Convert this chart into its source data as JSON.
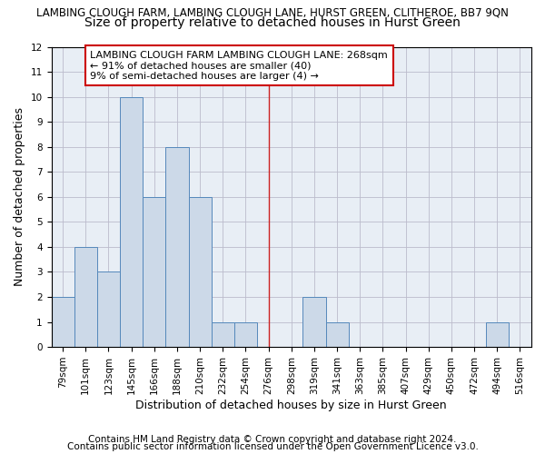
{
  "title": "LAMBING CLOUGH FARM, LAMBING CLOUGH LANE, HURST GREEN, CLITHEROE, BB7 9QN",
  "subtitle": "Size of property relative to detached houses in Hurst Green",
  "xlabel": "Distribution of detached houses by size in Hurst Green",
  "ylabel": "Number of detached properties",
  "categories": [
    "79sqm",
    "101sqm",
    "123sqm",
    "145sqm",
    "166sqm",
    "188sqm",
    "210sqm",
    "232sqm",
    "254sqm",
    "276sqm",
    "298sqm",
    "319sqm",
    "341sqm",
    "363sqm",
    "385sqm",
    "407sqm",
    "429sqm",
    "450sqm",
    "472sqm",
    "494sqm",
    "516sqm"
  ],
  "values": [
    2,
    4,
    3,
    10,
    6,
    8,
    6,
    1,
    1,
    0,
    0,
    2,
    1,
    0,
    0,
    0,
    0,
    0,
    0,
    1,
    0
  ],
  "bar_color": "#ccd9e8",
  "bar_edge_color": "#5588bb",
  "vline_position": 9.0,
  "vline_color": "#cc2222",
  "annotation_text": "LAMBING CLOUGH FARM LAMBING CLOUGH LANE: 268sqm\n← 91% of detached houses are smaller (40)\n9% of semi-detached houses are larger (4) →",
  "annotation_box_color": "#ffffff",
  "annotation_box_edge_color": "#cc0000",
  "ylim": [
    0,
    12
  ],
  "yticks": [
    0,
    1,
    2,
    3,
    4,
    5,
    6,
    7,
    8,
    9,
    10,
    11,
    12
  ],
  "grid_color": "#bbbbcc",
  "plot_bg_color": "#e8eef5",
  "background_color": "#ffffff",
  "footer1": "Contains HM Land Registry data © Crown copyright and database right 2024.",
  "footer2": "Contains public sector information licensed under the Open Government Licence v3.0.",
  "title_fontsize": 8.5,
  "subtitle_fontsize": 10,
  "axis_label_fontsize": 9,
  "tick_fontsize": 7.5,
  "annotation_fontsize": 8,
  "footer_fontsize": 7.5
}
